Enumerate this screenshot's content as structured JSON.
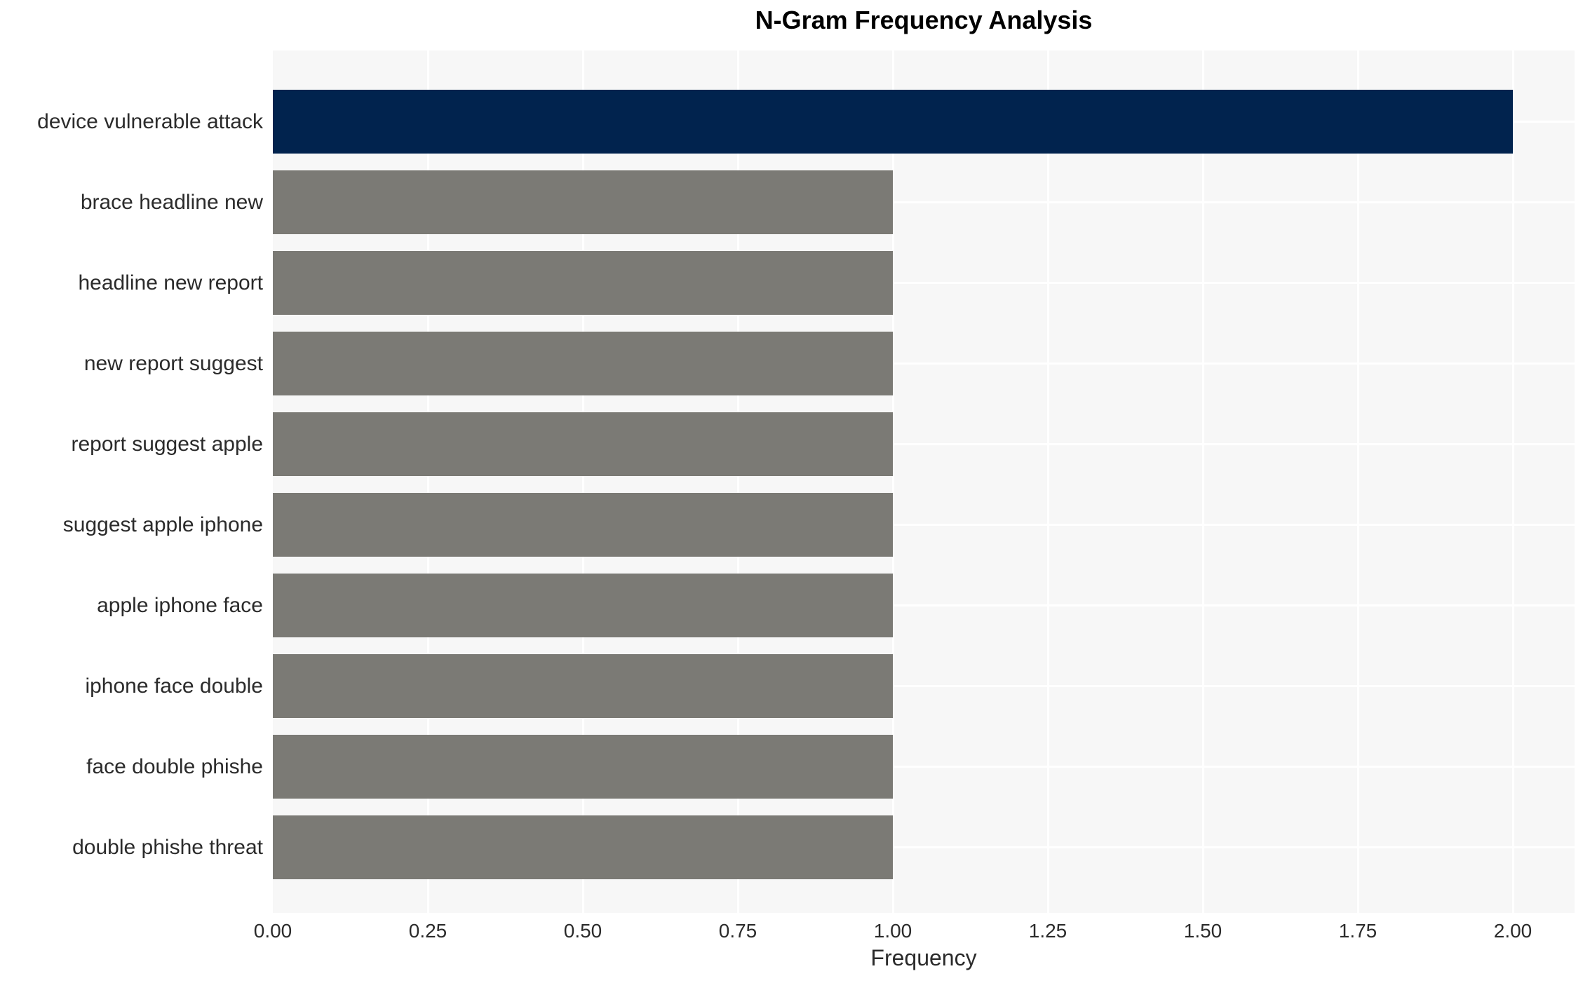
{
  "chart_data": {
    "type": "bar",
    "orientation": "horizontal",
    "title": "N-Gram Frequency Analysis",
    "xlabel": "Frequency",
    "ylabel": "",
    "categories": [
      "device vulnerable attack",
      "brace headline new",
      "headline new report",
      "new report suggest",
      "report suggest apple",
      "suggest apple iphone",
      "apple iphone face",
      "iphone face double",
      "face double phishe",
      "double phishe threat"
    ],
    "values": [
      2,
      1,
      1,
      1,
      1,
      1,
      1,
      1,
      1,
      1
    ],
    "bar_colors": [
      "#01234E",
      "#7B7A75",
      "#7B7A75",
      "#7B7A75",
      "#7B7A75",
      "#7B7A75",
      "#7B7A75",
      "#7B7A75",
      "#7B7A75",
      "#7B7A75"
    ],
    "xlim": [
      0,
      2.1
    ],
    "xticks": [
      0.0,
      0.25,
      0.5,
      0.75,
      1.0,
      1.25,
      1.5,
      1.75,
      2.0
    ],
    "xtick_labels": [
      "0.00",
      "0.25",
      "0.50",
      "0.75",
      "1.00",
      "1.25",
      "1.50",
      "1.75",
      "2.00"
    ],
    "grid": "white gridlines, vertical at x ticks and horizontal at bar centers, drawn under bars",
    "legend": null,
    "colors": {
      "highlight_bar": "#01234E",
      "default_bar": "#7B7A75",
      "plot_background": "#F7F7F7",
      "gridline": "#FFFFFF",
      "tick_text": "#2B2B2B",
      "title_text": "#000000"
    }
  }
}
